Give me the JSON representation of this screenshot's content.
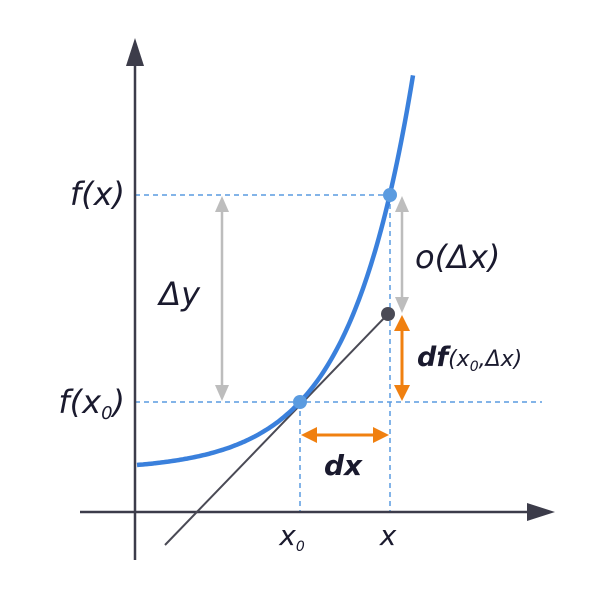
{
  "labels": {
    "f_x": "f(x)",
    "f_x0": {
      "main": "f(x",
      "sub": "0",
      "close": ")"
    },
    "delta_y": "Δy",
    "o_delta_x": "o(Δx)",
    "df": {
      "main": "df",
      "open": "(x",
      "sub": "0",
      "rest": ",Δx)"
    },
    "dx": "dx",
    "x0": {
      "main": "x",
      "sub": "0"
    },
    "x": "x"
  }
}
